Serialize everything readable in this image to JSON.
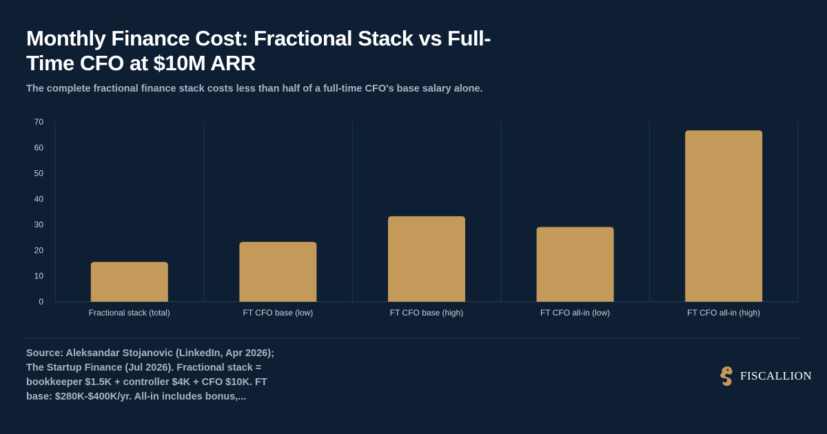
{
  "header": {
    "title": "Monthly Finance Cost: Fractional Stack vs Full-Time CFO at $10M ARR",
    "subtitle": "The complete fractional finance stack costs less than half of a full-time CFO's base salary alone."
  },
  "chart_data": {
    "type": "bar",
    "categories": [
      "Fractional stack (total)",
      "FT CFO base (low)",
      "FT CFO base (high)",
      "FT CFO all-in (low)",
      "FT CFO all-in (high)"
    ],
    "values": [
      15.5,
      23.3,
      33.3,
      29.1,
      66.7
    ],
    "ylim": [
      0,
      70
    ],
    "yticks": [
      0,
      10,
      20,
      30,
      40,
      50,
      60,
      70
    ],
    "grid": "vertical separators between categories",
    "legend": "none",
    "bar_color": "#c49a5a"
  },
  "footer": {
    "source": "Source: Aleksandar Stojanovic (LinkedIn, Apr 2026); The Startup Finance (Jul 2026). Fractional stack = bookkeeper $1.5K + controller $4K + CFO $10K. FT base: $280K-$400K/yr. All-in includes bonus,...",
    "brand_name": "FISCALLION",
    "brand_icon": "seahorse-logo-icon"
  },
  "colors": {
    "background": "#0e1f33",
    "accent": "#c49a5a",
    "text_muted": "#aab4c2"
  }
}
